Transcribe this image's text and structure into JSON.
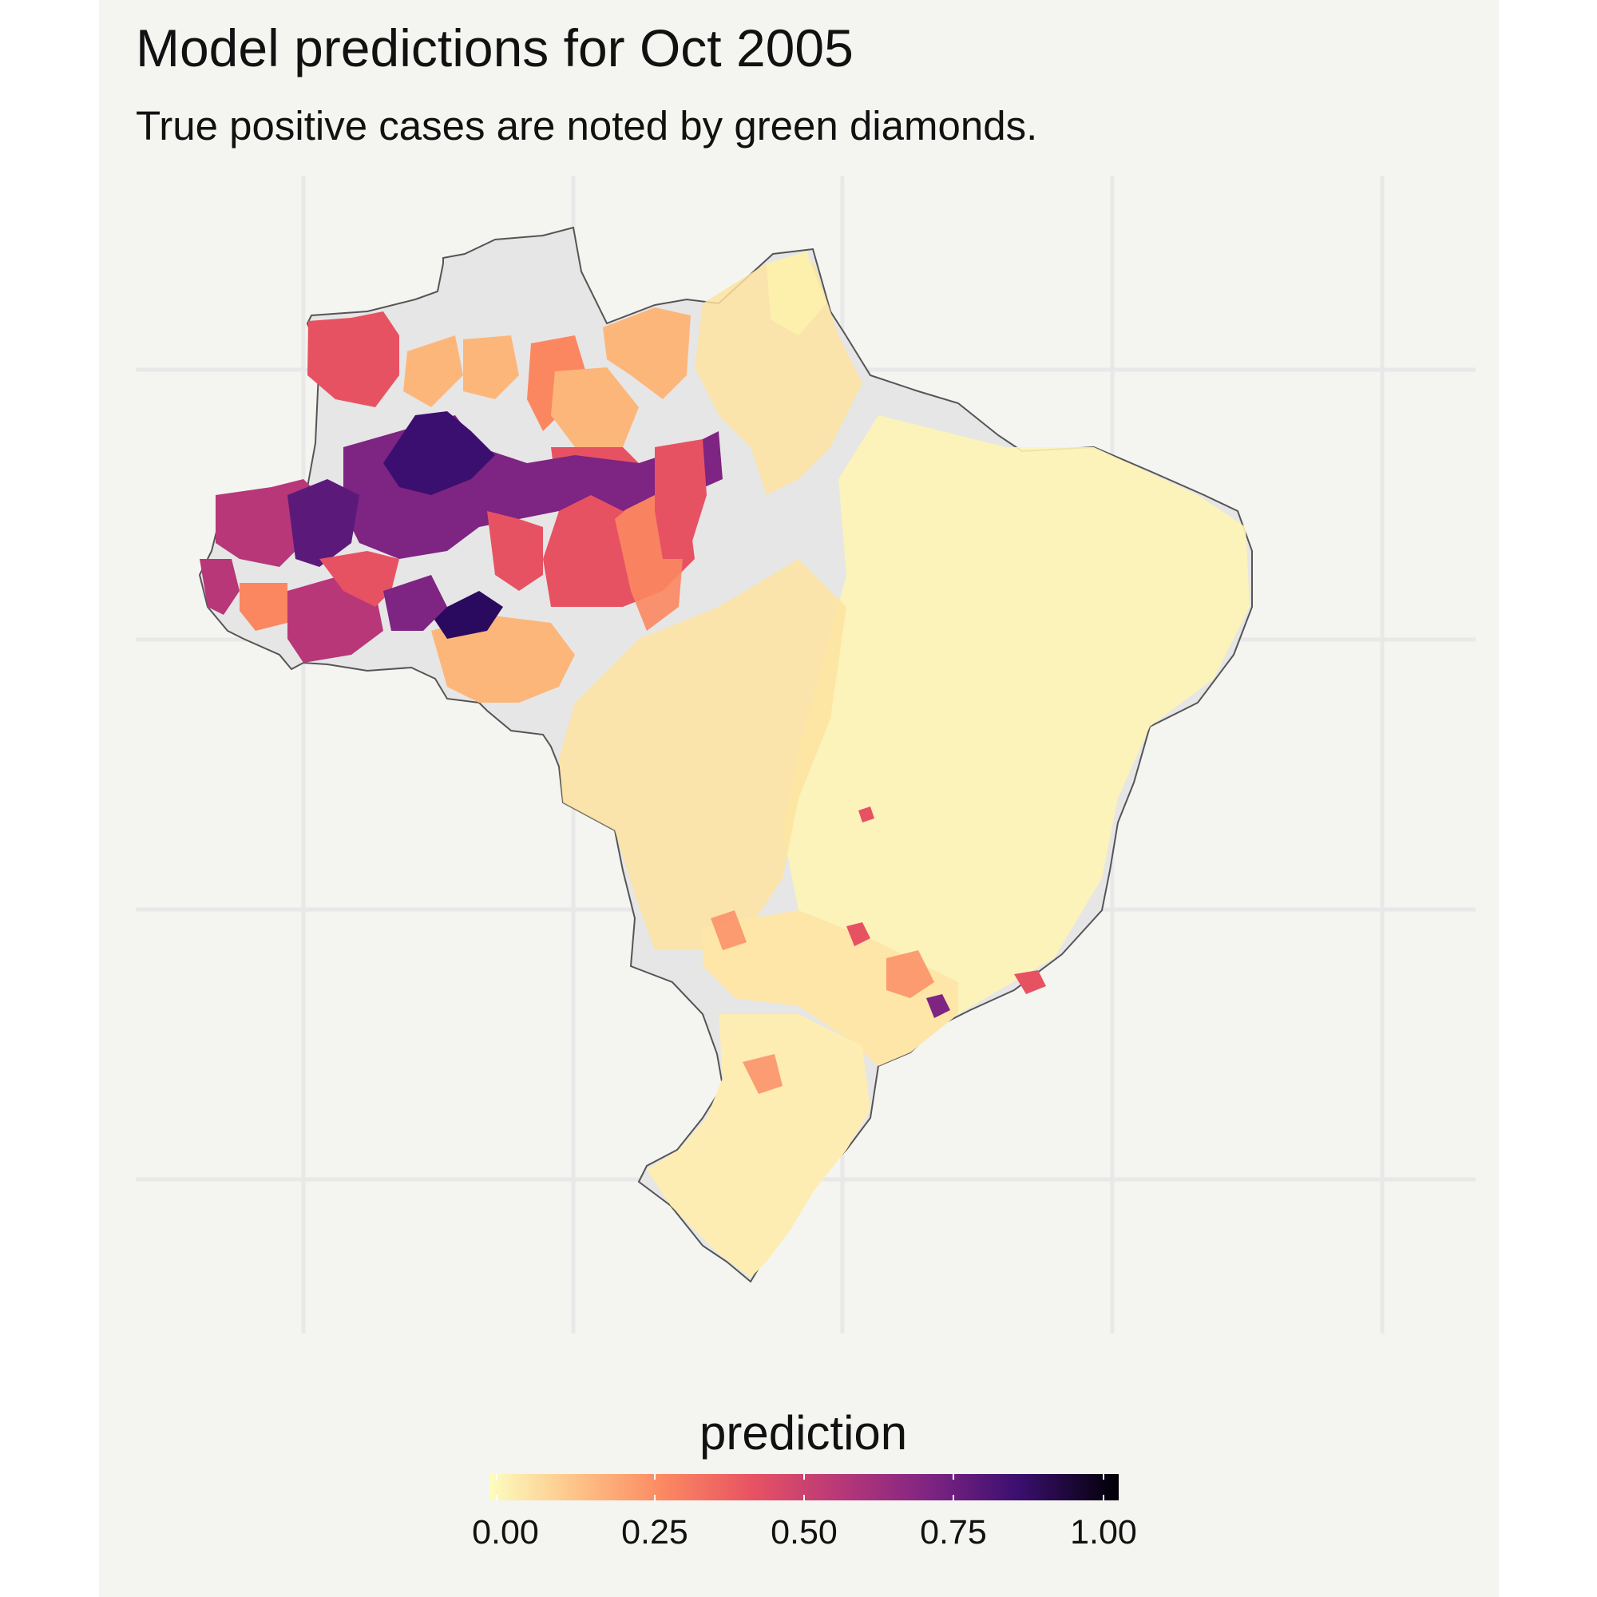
{
  "title": "Model predictions for Oct 2005",
  "subtitle": "True positive cases are noted by green diamonds.",
  "chart_data": {
    "type": "choropleth map",
    "region": "Brazil (municipalities)",
    "fill_variable": "prediction",
    "color_scale": {
      "name": "magma (reversed)",
      "range": [
        0,
        1
      ],
      "stops": [
        "#fcfdbf",
        "#fec287",
        "#fb8761",
        "#e75263",
        "#b73779",
        "#7e2482",
        "#3b0f70",
        "#000004"
      ]
    },
    "missing_color": "#e6e6e6",
    "grid": true,
    "legend": {
      "title": "prediction",
      "position": "bottom",
      "ticks": [
        "0.00",
        "0.25",
        "0.50",
        "0.75",
        "1.00"
      ]
    },
    "regions": [
      {
        "area": "far west Amazon (Acre / west Amazonas)",
        "prediction_range": [
          0.45,
          0.75
        ]
      },
      {
        "area": "central Amazonas river corridor",
        "prediction_range": [
          0.6,
          0.95
        ]
      },
      {
        "area": "northern Amazonas / Roraima",
        "prediction_range": [
          0.15,
          0.5
        ]
      },
      {
        "area": "Pará / Rondônia",
        "prediction_range": [
          0.15,
          0.45
        ]
      },
      {
        "area": "Northeast",
        "prediction_range": [
          0.0,
          0.1
        ]
      },
      {
        "area": "Central-West / Southeast",
        "prediction_range": [
          0.0,
          0.2
        ]
      },
      {
        "area": "São Paulo area",
        "prediction_range": [
          0.3,
          0.8
        ]
      },
      {
        "area": "South",
        "prediction_range": [
          0.0,
          0.25
        ]
      }
    ]
  }
}
